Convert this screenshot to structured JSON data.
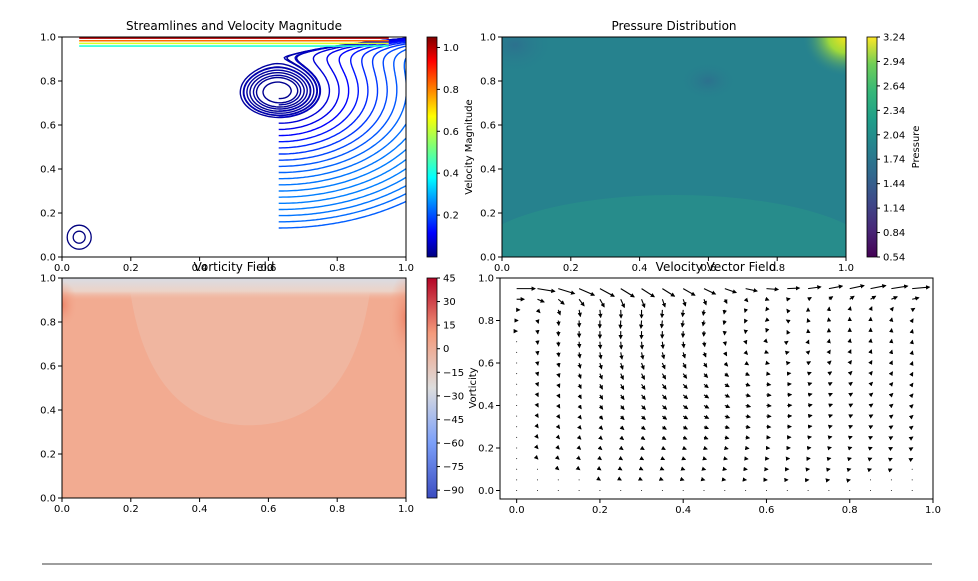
{
  "chart_data": [
    {
      "id": "streamlines",
      "type": "streamplot",
      "title": "Streamlines and Velocity Magnitude",
      "xlim": [
        0,
        1
      ],
      "ylim": [
        0,
        1
      ],
      "xticks": [
        "0.0",
        "0.2",
        "0.4",
        "0.6",
        "0.8",
        "1.0"
      ],
      "yticks": [
        "0.0",
        "0.2",
        "0.4",
        "0.6",
        "0.8",
        "1.0"
      ],
      "colorbar": {
        "label": "Velocity Magnitude",
        "colormap": "jet",
        "range": [
          0,
          1.05
        ],
        "ticks": [
          "0.2",
          "0.4",
          "0.6",
          "0.8",
          "1.0"
        ]
      },
      "vortex_center": [
        0.63,
        0.75
      ],
      "grid": false
    },
    {
      "id": "pressure",
      "type": "heatmap",
      "title": "Pressure Distribution",
      "xlim": [
        0,
        1
      ],
      "ylim": [
        0,
        1
      ],
      "xticks": [
        "0.0",
        "0.2",
        "0.4",
        "0.6",
        "0.8",
        "1.0"
      ],
      "yticks": [
        "0.0",
        "0.2",
        "0.4",
        "0.6",
        "0.8",
        "1.0"
      ],
      "colorbar": {
        "label": "Pressure",
        "colormap": "viridis",
        "range": [
          0.54,
          3.24
        ],
        "ticks": [
          "3.24",
          "2.94",
          "2.64",
          "2.34",
          "2.04",
          "1.74",
          "1.44",
          "1.14",
          "0.84",
          "0.54"
        ]
      },
      "background_value": 1.6,
      "features": [
        {
          "kind": "high",
          "x": 0.98,
          "y": 0.98,
          "value": 3.24
        },
        {
          "kind": "low",
          "x": 0.02,
          "y": 0.98,
          "value": 1.35
        },
        {
          "kind": "low",
          "x": 0.6,
          "y": 0.8,
          "value": 1.5
        }
      ],
      "grid": false
    },
    {
      "id": "vorticity",
      "type": "heatmap",
      "title": "Vorticity Field",
      "xlim": [
        0,
        1
      ],
      "ylim": [
        0,
        1
      ],
      "xticks": [
        "0.0",
        "0.2",
        "0.4",
        "0.6",
        "0.8",
        "1.0"
      ],
      "yticks": [
        "0.0",
        "0.2",
        "0.4",
        "0.6",
        "0.8",
        "1.0"
      ],
      "colorbar": {
        "label": "Vorticity",
        "colormap": "coolwarm",
        "range": [
          -95,
          45
        ],
        "ticks": [
          "45",
          "30",
          "15",
          "0",
          "−15",
          "−30",
          "−45",
          "−60",
          "−75",
          "−90"
        ]
      },
      "background_value": 6,
      "grid": false
    },
    {
      "id": "quiver",
      "type": "quiver",
      "title": "Velocity Vector Field",
      "xlim": [
        -0.04,
        1.0
      ],
      "ylim": [
        -0.04,
        1.0
      ],
      "xticks": [
        "0.0",
        "0.2",
        "0.4",
        "0.6",
        "0.8",
        "1.0"
      ],
      "yticks": [
        "0.0",
        "0.2",
        "0.4",
        "0.6",
        "0.8",
        "1.0"
      ],
      "grid_spacing": 0.05,
      "vortex_center": [
        0.63,
        0.72
      ],
      "grid": false
    }
  ]
}
